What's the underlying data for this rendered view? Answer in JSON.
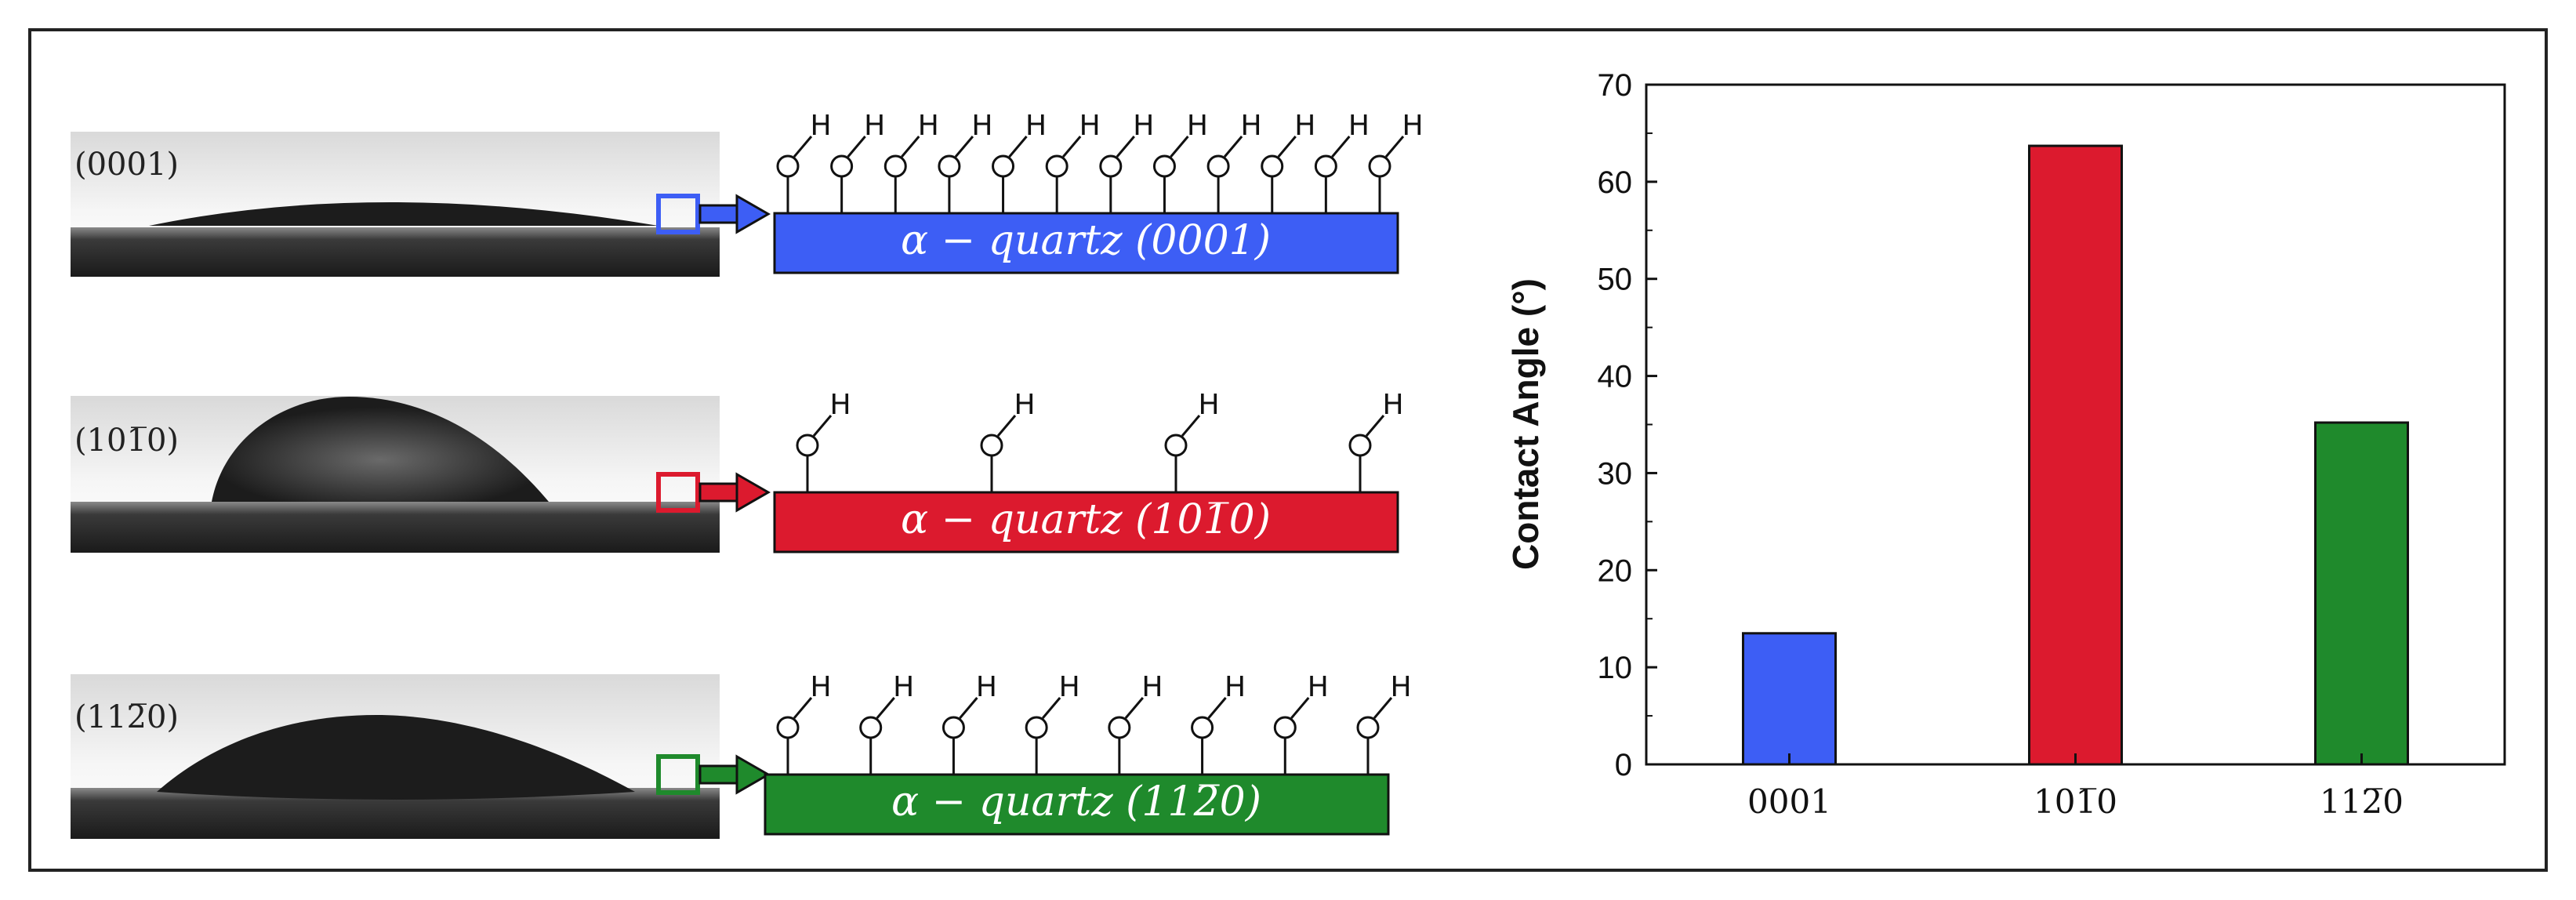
{
  "panels": [
    {
      "key": "0001",
      "label": "(0001)",
      "bar_text": "α − quartz (0001)",
      "color": "#3d5ef5",
      "oh_count": 12
    },
    {
      "key": "10-10",
      "label": "(101̅0)",
      "bar_text": "α − quartz (101̅0)",
      "color": "#dc1a2e",
      "oh_count": 4
    },
    {
      "key": "11-20",
      "label": "(112̅0)",
      "bar_text": "α − quartz (112̅0)",
      "color": "#1f8a2c",
      "oh_count": 8
    }
  ],
  "atoms": {
    "oxygen": "O",
    "hydrogen": "H"
  },
  "chart_data": {
    "type": "bar",
    "categories": [
      "0001",
      "101̅0",
      "112̅0"
    ],
    "values": [
      13.5,
      63.7,
      35.2
    ],
    "colors": [
      "#3d5ef5",
      "#dc1a2e",
      "#1f8a2c"
    ],
    "title": "",
    "xlabel": "",
    "ylabel": "Contact Angle (°)",
    "ylim": [
      0,
      70
    ],
    "yticks": [
      0,
      10,
      20,
      30,
      40,
      50,
      60,
      70
    ],
    "grid": false
  }
}
